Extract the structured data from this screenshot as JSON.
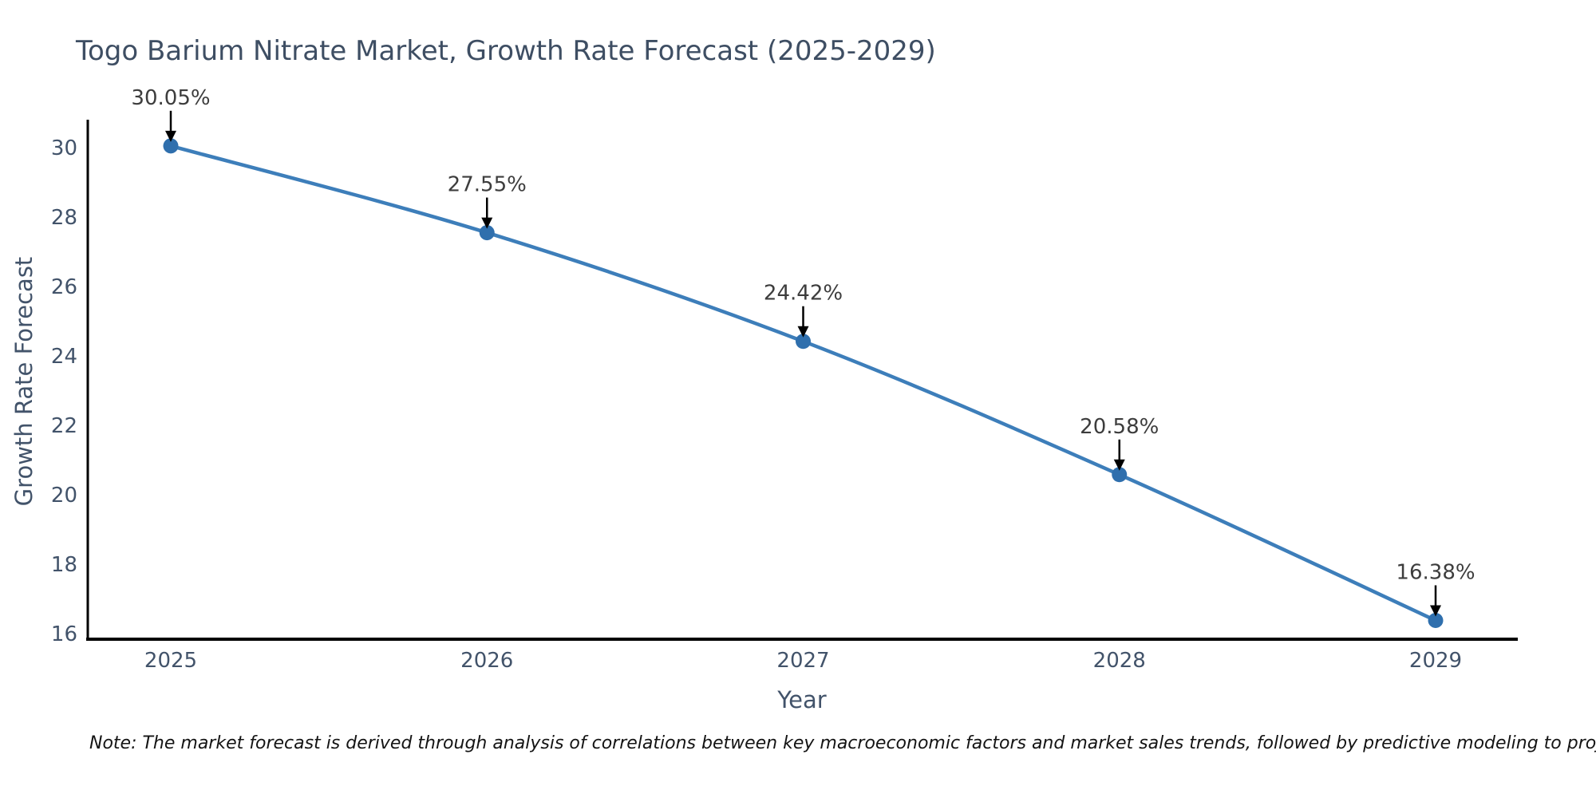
{
  "title": "Togo Barium Nitrate Market, Growth Rate Forecast (2025-2029)",
  "note": "Note: The market forecast is derived through analysis of correlations between key macroeconomic factors and market sales trends, followed by predictive modeling to project future sales",
  "chart_data": {
    "type": "line",
    "title": "Togo Barium Nitrate Market, Growth Rate Forecast (2025-2029)",
    "xlabel": "Year",
    "ylabel": "Growth Rate Forecast",
    "x": [
      "2025",
      "2026",
      "2027",
      "2028",
      "2029"
    ],
    "series": [
      {
        "name": "Growth Rate Forecast",
        "values": [
          30.05,
          27.55,
          24.42,
          20.58,
          16.38
        ]
      }
    ],
    "point_labels": [
      "30.05%",
      "27.55%",
      "24.42%",
      "20.58%",
      "16.38%"
    ],
    "yticks": [
      16,
      18,
      20,
      22,
      24,
      26,
      28,
      30
    ],
    "ylim": [
      15.8,
      31
    ],
    "grid": false,
    "legend_position": "none",
    "line_shape": "spline",
    "colors": {
      "line": "#3d7eba",
      "marker": "#2f6fad",
      "axis_line": "#000000",
      "tick_text": "#42536a",
      "title_text": "#3e4e63",
      "annotation_text": "#3d3d3d",
      "annotation_arrow": "#000000",
      "note_text": "#141414",
      "background": "#ffffff"
    }
  }
}
